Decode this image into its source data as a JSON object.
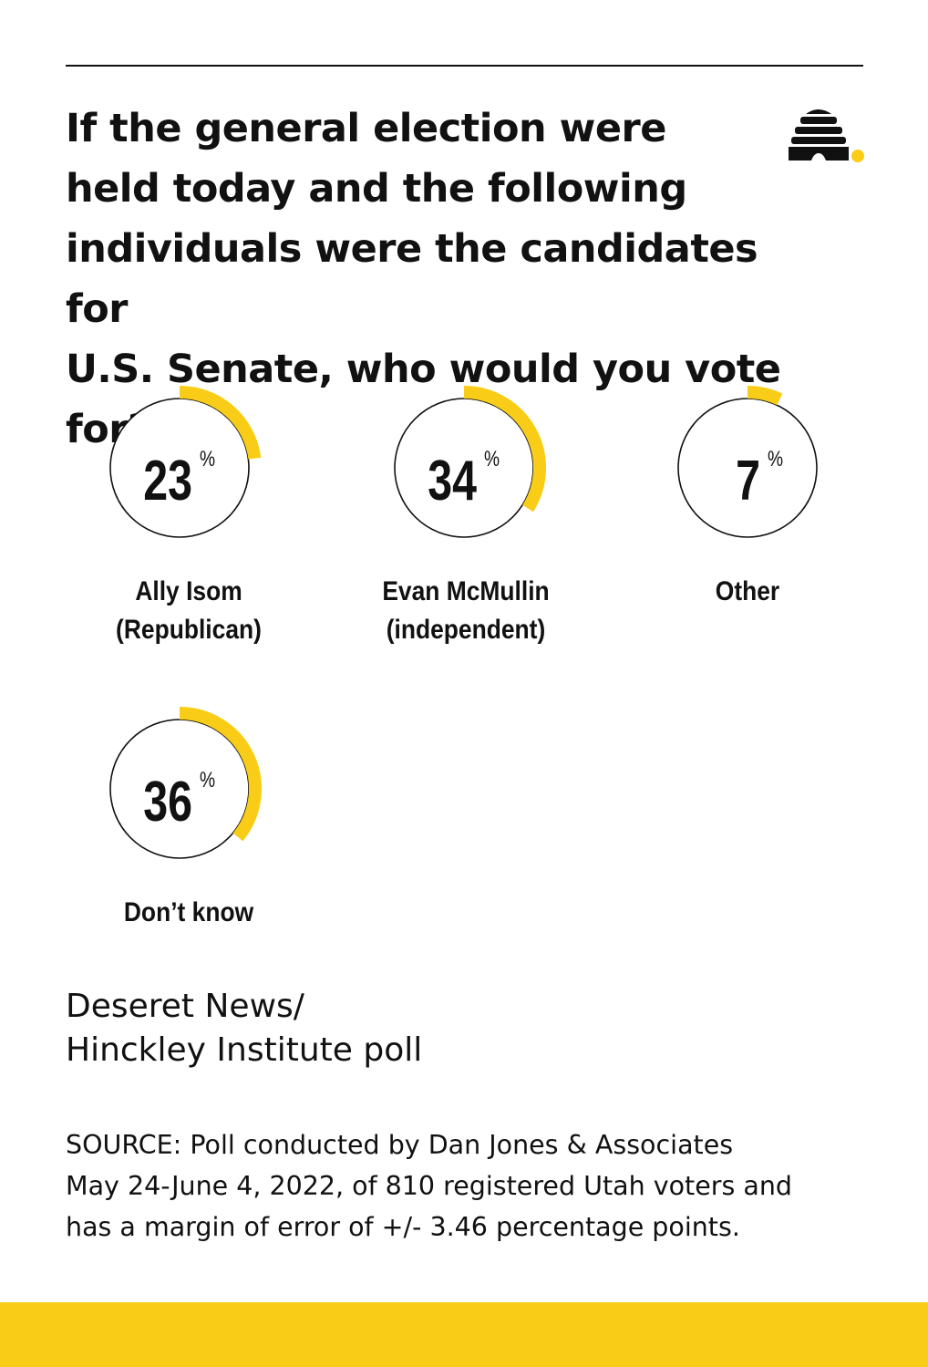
{
  "header": {
    "title_lines": [
      "If the general election were",
      "held today and the following",
      "individuals were the candidates for",
      "U.S. Senate, who would you vote for?"
    ],
    "logo_icon": "beehive-icon"
  },
  "colors": {
    "accent": "#f9cd17",
    "ink": "#111111",
    "background": "#ffffff"
  },
  "chart_data": {
    "type": "donut",
    "unit": "%",
    "items": [
      {
        "value": 23,
        "label_lines": [
          "Ally Isom",
          "(Republican)"
        ]
      },
      {
        "value": 34,
        "label_lines": [
          "Evan McMullin",
          "(independent)"
        ]
      },
      {
        "value": 7,
        "label_lines": [
          "Other"
        ]
      },
      {
        "value": 36,
        "label_lines": [
          "Don’t know"
        ]
      }
    ]
  },
  "publisher": {
    "lines": [
      "Deseret News/",
      "Hinckley Institute poll"
    ]
  },
  "source": {
    "lines": [
      "SOURCE: Poll conducted by Dan Jones & Associates",
      "May 24-June 4, 2022, of 810 registered Utah voters and",
      "has a margin of error of +/- 3.46 percentage points."
    ]
  }
}
